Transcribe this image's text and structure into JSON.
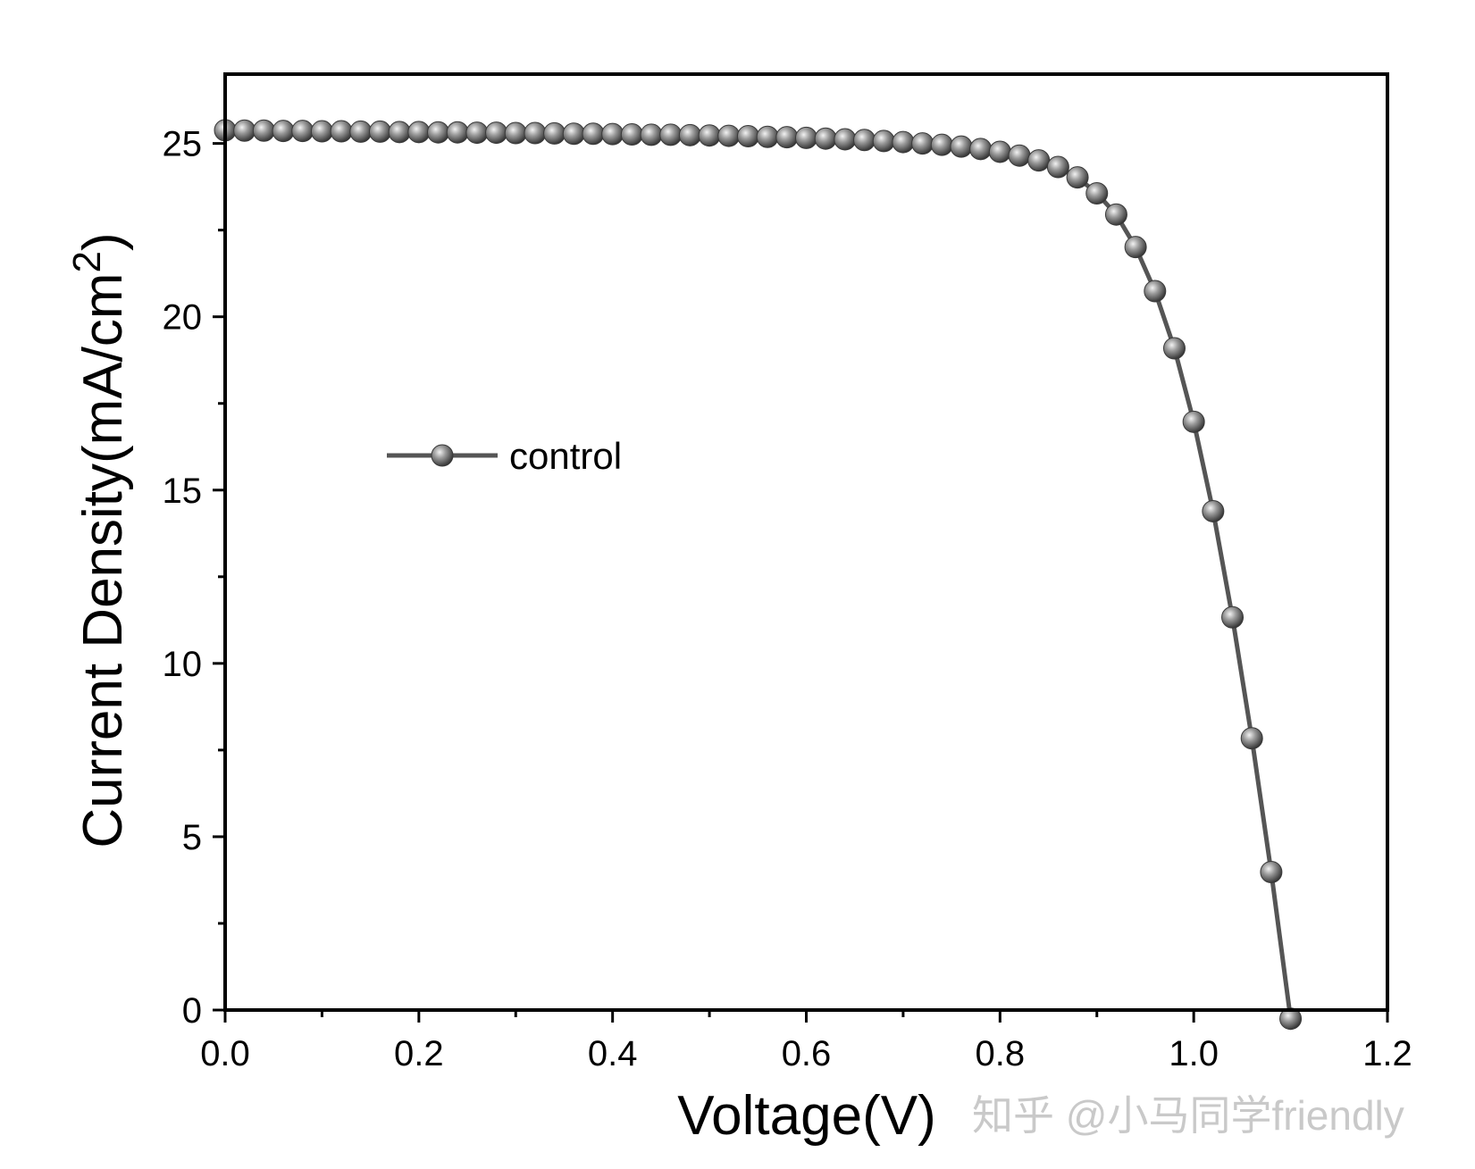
{
  "chart_data": {
    "type": "line",
    "title": "",
    "xlabel": "Voltage(V)",
    "ylabel": "Current Density(mA/cm",
    "ylabel_superscript": "2",
    "ylabel_close": ")",
    "xlim": [
      0.0,
      1.2
    ],
    "ylim": [
      0,
      27
    ],
    "x_ticks": [
      "0.0",
      "0.2",
      "0.4",
      "0.6",
      "0.8",
      "1.0",
      "1.2"
    ],
    "y_ticks": [
      "0",
      "5",
      "10",
      "15",
      "20",
      "25"
    ],
    "grid": false,
    "legend_position": "center-left",
    "series": [
      {
        "name": "control",
        "color": "#555555",
        "marker": "sphere",
        "x": [
          0.0,
          0.02,
          0.04,
          0.06,
          0.08,
          0.1,
          0.12,
          0.14,
          0.16,
          0.18,
          0.2,
          0.22,
          0.24,
          0.26,
          0.28,
          0.3,
          0.32,
          0.34,
          0.36,
          0.38,
          0.4,
          0.42,
          0.44,
          0.46,
          0.48,
          0.5,
          0.52,
          0.54,
          0.56,
          0.58,
          0.6,
          0.62,
          0.64,
          0.66,
          0.68,
          0.7,
          0.72,
          0.74,
          0.76,
          0.78,
          0.8,
          0.82,
          0.84,
          0.86,
          0.88,
          0.9,
          0.92,
          0.94,
          0.96,
          0.98,
          1.0,
          1.02,
          1.04,
          1.06,
          1.08,
          1.1
        ],
        "y": [
          25.38,
          25.37,
          25.37,
          25.36,
          25.36,
          25.35,
          25.35,
          25.34,
          25.34,
          25.33,
          25.33,
          25.32,
          25.32,
          25.31,
          25.31,
          25.3,
          25.3,
          25.29,
          25.28,
          25.28,
          25.27,
          25.26,
          25.25,
          25.25,
          25.24,
          25.23,
          25.22,
          25.21,
          25.19,
          25.18,
          25.16,
          25.14,
          25.12,
          25.1,
          25.07,
          25.04,
          25.0,
          24.96,
          24.91,
          24.84,
          24.76,
          24.65,
          24.51,
          24.32,
          24.02,
          23.56,
          22.95,
          22.01,
          20.74,
          19.09,
          16.97,
          14.39,
          11.33,
          7.84,
          3.98,
          -0.25
        ]
      }
    ]
  },
  "watermark": "知乎 @小马同学friendly"
}
